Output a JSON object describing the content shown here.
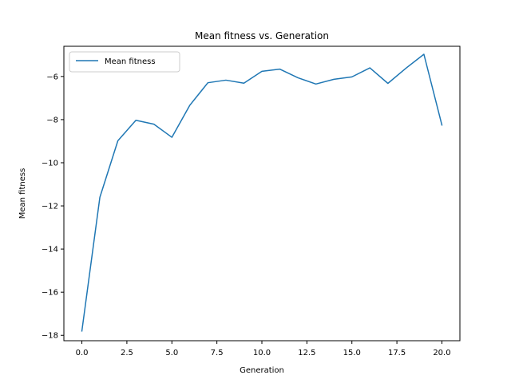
{
  "chart_data": {
    "type": "line",
    "title": "Mean fitness vs. Generation",
    "xlabel": "Generation",
    "ylabel": "Mean fitness",
    "xlim": [
      -1.0,
      21.0
    ],
    "ylim": [
      -18.25,
      -4.6
    ],
    "x_ticks": [
      0.0,
      2.5,
      5.0,
      7.5,
      10.0,
      12.5,
      15.0,
      17.5,
      20.0
    ],
    "x_tick_labels": [
      "0.0",
      "2.5",
      "5.0",
      "7.5",
      "10.0",
      "12.5",
      "15.0",
      "17.5",
      "20.0"
    ],
    "y_ticks": [
      -18,
      -16,
      -14,
      -12,
      -10,
      -8,
      -6
    ],
    "y_tick_labels": [
      "−18",
      "−16",
      "−14",
      "−12",
      "−10",
      "−8",
      "−6"
    ],
    "grid": false,
    "legend_position": "top-left",
    "series": [
      {
        "name": "Mean fitness",
        "color": "#1f77b4",
        "x": [
          0,
          1,
          2,
          3,
          4,
          5,
          6,
          7,
          8,
          9,
          10,
          11,
          12,
          13,
          14,
          15,
          16,
          17,
          18,
          19,
          20
        ],
        "values": [
          -17.8,
          -11.6,
          -8.98,
          -8.03,
          -8.21,
          -8.82,
          -7.33,
          -6.29,
          -6.17,
          -6.31,
          -5.76,
          -5.66,
          -6.06,
          -6.35,
          -6.13,
          -6.02,
          -5.6,
          -6.32,
          -5.62,
          -4.97,
          -8.25
        ]
      }
    ]
  }
}
